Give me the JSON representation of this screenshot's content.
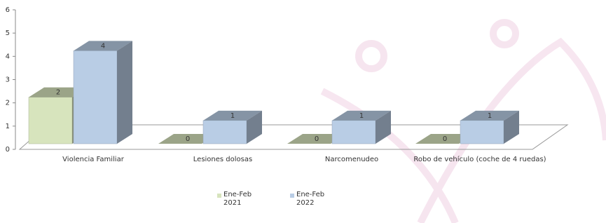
{
  "chart_data": {
    "type": "bar3d",
    "categories": [
      "Violencia Familiar",
      "Lesiones dolosas",
      "Narcomenudeo",
      "Robo de vehículo (coche de 4 ruedas)"
    ],
    "series": [
      {
        "name": "Ene-Feb 2021",
        "color": "#d7e4bd",
        "values": [
          2,
          0,
          0,
          0
        ]
      },
      {
        "name": "Ene-Feb 2022",
        "color": "#b9cde5",
        "values": [
          4,
          1,
          1,
          1
        ]
      }
    ],
    "ylim": [
      0,
      6
    ],
    "yticks": [
      0,
      1,
      2,
      3,
      4,
      5,
      6
    ],
    "legend": "bottom"
  }
}
